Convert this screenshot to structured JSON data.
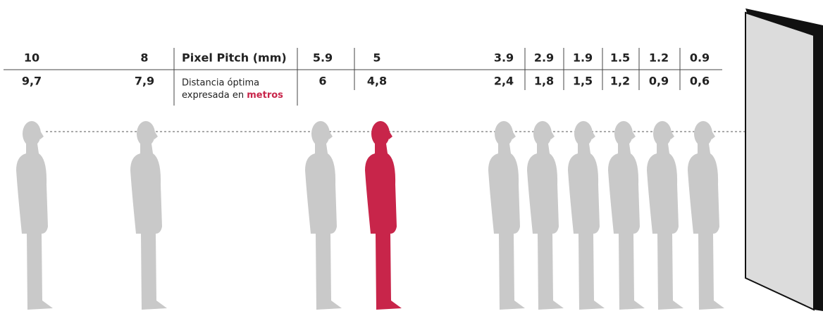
{
  "header": {
    "pitch_label": "Pixel Pitch (mm)",
    "distance_label": [
      "Distancia óptima",
      "expresada en",
      "metros"
    ]
  },
  "highlight_color": "#c8254a",
  "figure_color": "#c9c9c9",
  "columns": [
    {
      "pitch": "10",
      "distance": "9,7"
    },
    {
      "pitch": "8",
      "distance": "7,9"
    },
    {
      "pitch": "5.9",
      "distance": "6"
    },
    {
      "pitch": "5",
      "distance": "4,8",
      "highlight": true
    },
    {
      "pitch": "3.9",
      "distance": "2,4"
    },
    {
      "pitch": "2.9",
      "distance": "1,8"
    },
    {
      "pitch": "1.9",
      "distance": "1,5"
    },
    {
      "pitch": "1.5",
      "distance": "1,2"
    },
    {
      "pitch": "1.2",
      "distance": "0,9"
    },
    {
      "pitch": "0.9",
      "distance": "0,6"
    }
  ]
}
